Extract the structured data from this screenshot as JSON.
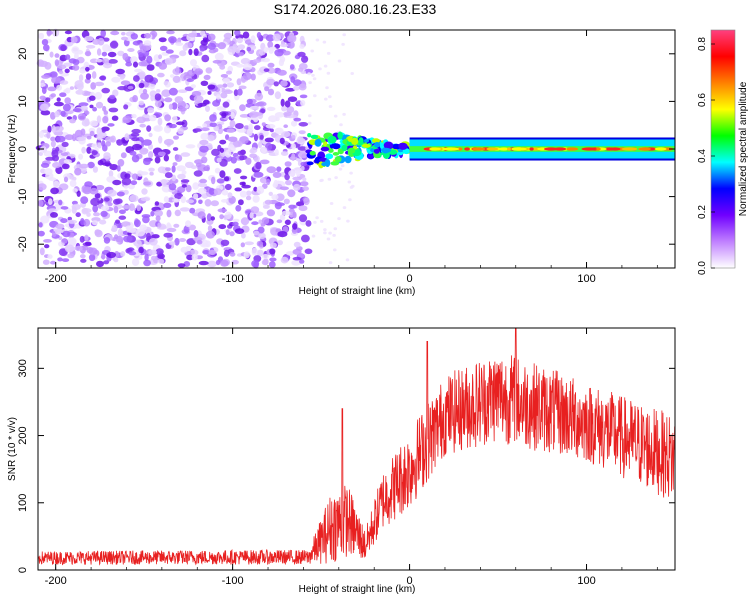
{
  "title": "S174.2026.080.16.23.E33",
  "chart_data": [
    {
      "type": "heatmap",
      "xlabel": "Height of straight line (km)",
      "ylabel": "Frequency (Hz)",
      "xlim": [
        -210,
        150
      ],
      "ylim": [
        -25,
        25
      ],
      "xticks": [
        -200,
        -100,
        0,
        100
      ],
      "yticks": [
        -20,
        -10,
        0,
        10,
        20
      ],
      "noise_region_x": [
        -210,
        -57
      ],
      "signal_region_x": [
        -57,
        150
      ],
      "signal_frequency_band": [
        -2,
        2
      ],
      "colorbar": {
        "label": "Normalized spectral amplitude",
        "range": [
          0.0,
          0.85
        ],
        "ticks": [
          0.0,
          0.2,
          0.4,
          0.6,
          0.8
        ],
        "colors": [
          "#ffffff",
          "#c080ff",
          "#7000ff",
          "#0000ff",
          "#00ffff",
          "#00ff00",
          "#ffff00",
          "#ff8000",
          "#ff0000",
          "#ff4080"
        ]
      }
    },
    {
      "type": "line",
      "xlabel": "Height of straight line (km)",
      "ylabel": "SNR (10 * v/v)",
      "xlim": [
        -210,
        150
      ],
      "ylim": [
        0,
        360
      ],
      "xticks": [
        -200,
        -100,
        0,
        100
      ],
      "yticks": [
        0,
        100,
        200,
        300
      ],
      "color": "#e82020",
      "envelope": [
        {
          "x": -210,
          "low": 8,
          "high": 28
        },
        {
          "x": -100,
          "low": 8,
          "high": 30
        },
        {
          "x": -57,
          "low": 8,
          "high": 30
        },
        {
          "x": -44,
          "low": 10,
          "high": 120
        },
        {
          "x": -35,
          "low": 20,
          "high": 130
        },
        {
          "x": -25,
          "low": 12,
          "high": 60
        },
        {
          "x": -15,
          "low": 60,
          "high": 150
        },
        {
          "x": 0,
          "low": 90,
          "high": 210
        },
        {
          "x": 20,
          "low": 170,
          "high": 290
        },
        {
          "x": 50,
          "low": 190,
          "high": 330
        },
        {
          "x": 100,
          "low": 160,
          "high": 280
        },
        {
          "x": 150,
          "low": 100,
          "high": 230
        }
      ],
      "spikes": [
        {
          "x": -38,
          "y": 240
        },
        {
          "x": 10,
          "y": 340
        },
        {
          "x": 60,
          "y": 360
        }
      ]
    }
  ]
}
